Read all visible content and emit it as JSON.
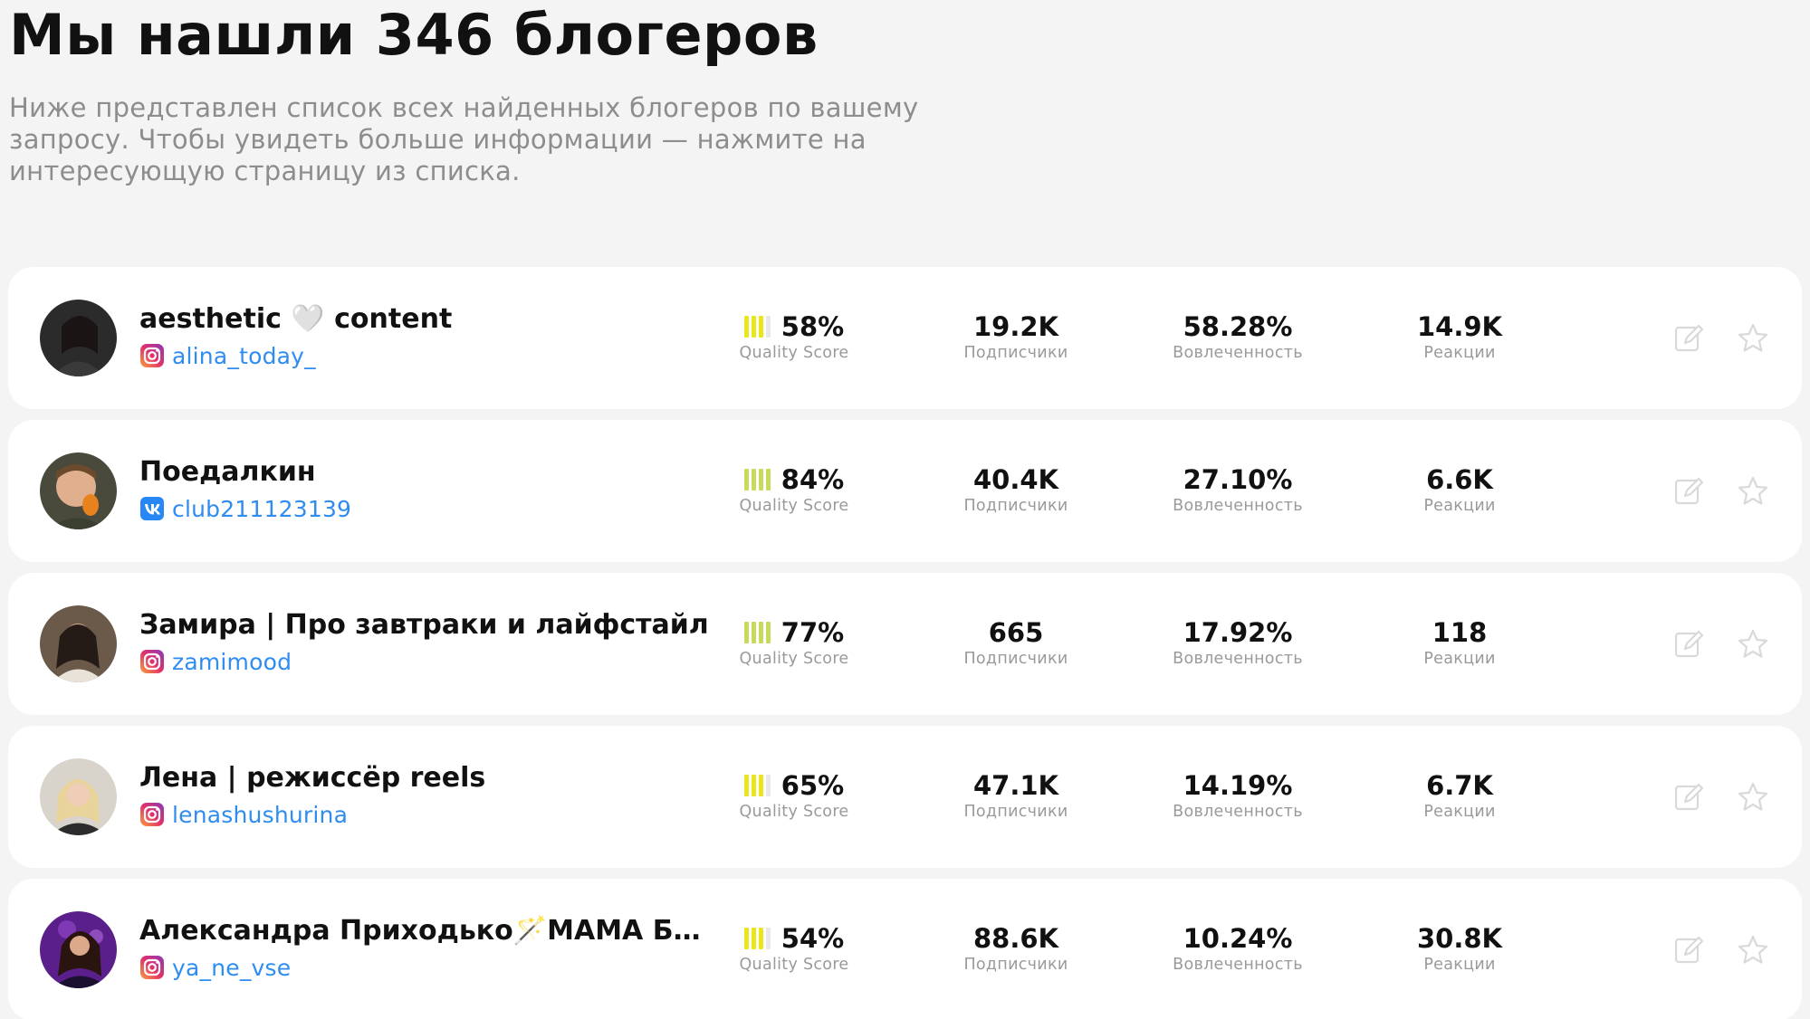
{
  "header": {
    "title": "Мы нашли 346 блогеров",
    "subtitle": "Ниже представлен список всех найденных блогеров по вашему запросу. Чтобы увидеть больше информации — нажмите на интересующую страницу из списка."
  },
  "labels": {
    "quality_score": "Quality Score",
    "subscribers": "Подписчики",
    "engagement": "Вовлеченность",
    "reactions": "Реакции"
  },
  "colors": {
    "handle": "#2f8cf0",
    "qs_bar_full": "#e9e61c",
    "qs_bar_mid": "#c9da5a",
    "action_icon": "#d9d9d9"
  },
  "bloggers": [
    {
      "name": "aesthetic 🤍 content",
      "platform": "instagram-icon",
      "handle": "alina_today_",
      "quality_score": "58%",
      "quality_score_value": 58,
      "subscribers": "19.2K",
      "engagement": "58.28%",
      "reactions": "14.9K"
    },
    {
      "name": "Поедалкин",
      "platform": "vk-icon",
      "handle": "club211123139",
      "quality_score": "84%",
      "quality_score_value": 84,
      "subscribers": "40.4K",
      "engagement": "27.10%",
      "reactions": "6.6K"
    },
    {
      "name": "Замира | Про завтраки и лайфстайл",
      "platform": "instagram-icon",
      "handle": "zamimood",
      "quality_score": "77%",
      "quality_score_value": 77,
      "subscribers": "665",
      "engagement": "17.92%",
      "reactions": "118"
    },
    {
      "name": "Лена | режиссёр reels",
      "platform": "instagram-icon",
      "handle": "lenashushurina",
      "quality_score": "65%",
      "quality_score_value": 65,
      "subscribers": "47.1K",
      "engagement": "14.19%",
      "reactions": "6.7K"
    },
    {
      "name": "Александра Приходько🪄МАМА БЛО...",
      "platform": "instagram-icon",
      "handle": "ya_ne_vse",
      "quality_score": "54%",
      "quality_score_value": 54,
      "subscribers": "88.6K",
      "engagement": "10.24%",
      "reactions": "30.8K"
    }
  ]
}
